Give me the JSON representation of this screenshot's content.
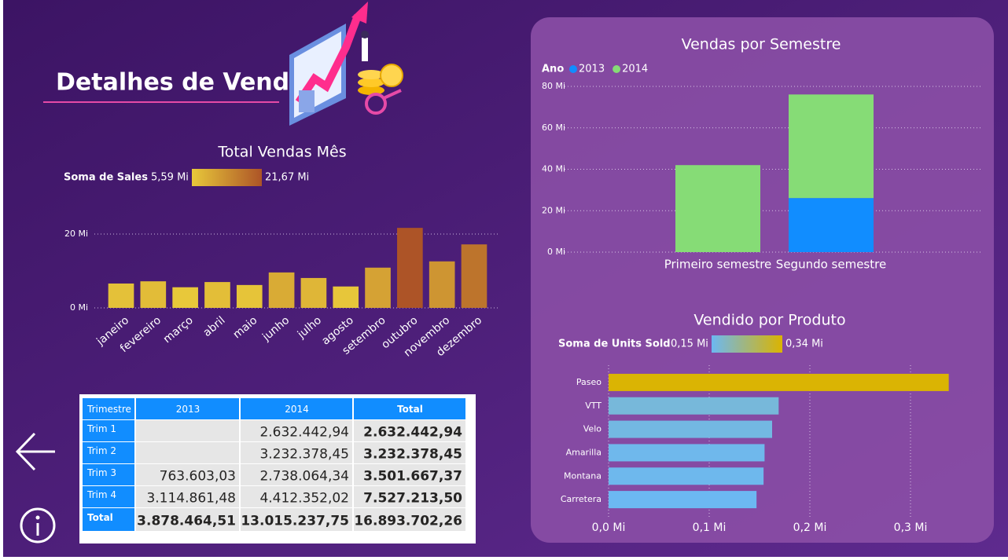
{
  "header": {
    "title": "Detalhes de Venda"
  },
  "chart_data": [
    {
      "type": "bar",
      "title": "Total Vendas Mês",
      "categories": [
        "janeiro",
        "fevereiro",
        "março",
        "abril",
        "maio",
        "junho",
        "julho",
        "agosto",
        "setembro",
        "outubro",
        "novembro",
        "dezembro"
      ],
      "values": [
        6.6,
        7.2,
        5.59,
        7.0,
        6.2,
        9.6,
        8.1,
        5.8,
        10.9,
        21.67,
        12.6,
        17.2
      ],
      "ylim": [
        0,
        22
      ],
      "yticks": [
        {
          "value": 0,
          "label": "0 Mi"
        },
        {
          "value": 20,
          "label": "20 Mi"
        }
      ],
      "grid": true,
      "color_scale": {
        "title": "Soma de  Sales",
        "min": {
          "value": 5.59,
          "label": "5,59 Mi"
        },
        "max": {
          "value": 21.67,
          "label": "21,67 Mi"
        },
        "colors": [
          "#e8c83a",
          "#ad5427"
        ]
      }
    },
    {
      "type": "stacked_bar",
      "title": "Vendas por Semestre",
      "categories": [
        "Primeiro semestre",
        "Segundo semestre"
      ],
      "legend_title": "Ano",
      "series": [
        {
          "name": "2013",
          "color": "#118dff",
          "values": [
            null,
            26.1
          ]
        },
        {
          "name": "2014",
          "color": "#86dc76",
          "values": [
            42.0,
            50.0
          ]
        }
      ],
      "ylim": [
        0,
        80
      ],
      "yticks": [
        {
          "value": 0,
          "label": "0 Mi"
        },
        {
          "value": 20,
          "label": "20 Mi"
        },
        {
          "value": 40,
          "label": "40 Mi"
        },
        {
          "value": 60,
          "label": "60 Mi"
        },
        {
          "value": 80,
          "label": "80 Mi"
        }
      ],
      "grid": true
    },
    {
      "type": "hbar",
      "title": "Vendido por Produto",
      "categories": [
        "Paseo",
        "VTT",
        "Velo",
        "Amarilla",
        "Montana",
        "Carretera"
      ],
      "values": [
        0.338,
        0.169,
        0.1625,
        0.155,
        0.154,
        0.147
      ],
      "xlim": [
        0,
        0.35
      ],
      "xticks": [
        {
          "value": 0,
          "label": "0,0 Mi"
        },
        {
          "value": 0.1,
          "label": "0,1 Mi"
        },
        {
          "value": 0.2,
          "label": "0,2 Mi"
        },
        {
          "value": 0.3,
          "label": "0,3 Mi"
        }
      ],
      "grid": true,
      "color_scale": {
        "title": "Soma de Units Sold",
        "min": {
          "value": 0.15,
          "label": "0,15 Mi"
        },
        "max": {
          "value": 0.34,
          "label": "0,34 Mi"
        },
        "colors": [
          "#6cb8f2",
          "#dbb400"
        ]
      }
    }
  ],
  "table": {
    "rows": [
      [
        "Trimestre",
        "2013",
        "2014",
        "Total"
      ],
      [
        "Trim 1",
        null,
        "2.632.442,94",
        "2.632.442,94"
      ],
      [
        "Trim 2",
        null,
        "3.232.378,45",
        "3.232.378,45"
      ],
      [
        "Trim 3",
        "763.603,03",
        "2.738.064,34",
        "3.501.667,37"
      ],
      [
        "Trim 4",
        "3.114.861,48",
        "4.412.352,02",
        "7.527.213,50"
      ],
      [
        "Total",
        "3.878.464,51",
        "13.015.237,75",
        "16.893.702,26"
      ]
    ]
  }
}
